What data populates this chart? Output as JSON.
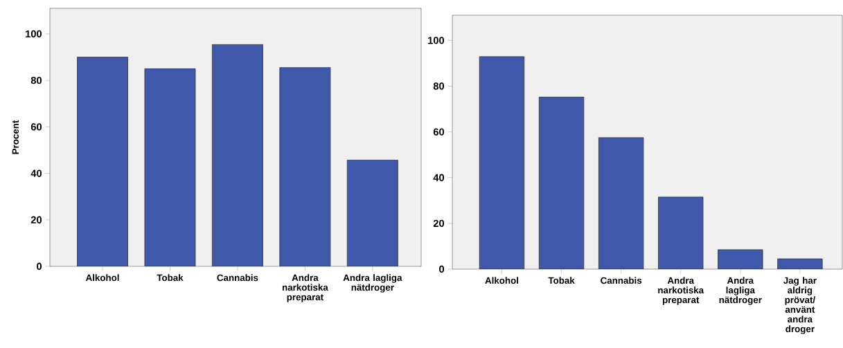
{
  "chart_data": [
    {
      "type": "bar",
      "ylabel": "Procent",
      "categories": [
        "Alkohol",
        "Tobak",
        "Cannabis",
        "Andra narkotiska preparat",
        "Andra lagliga nätdroger"
      ],
      "values": [
        90,
        85,
        95.4,
        85.5,
        45.7
      ],
      "color": "#3f58a9",
      "ylim": [
        0,
        111
      ],
      "yticks": [
        0,
        20,
        40,
        60,
        80,
        100
      ]
    },
    {
      "type": "bar",
      "categories": [
        "Alkohol",
        "Tobak",
        "Cannabis",
        "Andra narkotiska preparat",
        "Andra lagliga nätdroger",
        "Jag har aldrig prövat/ använt andra droger"
      ],
      "values": [
        92.9,
        75.2,
        57.5,
        31.5,
        8.5,
        4.5
      ],
      "color": "#3f58a9",
      "ylim": [
        0,
        111
      ],
      "yticks": [
        0,
        20,
        40,
        60,
        80,
        100
      ]
    }
  ]
}
